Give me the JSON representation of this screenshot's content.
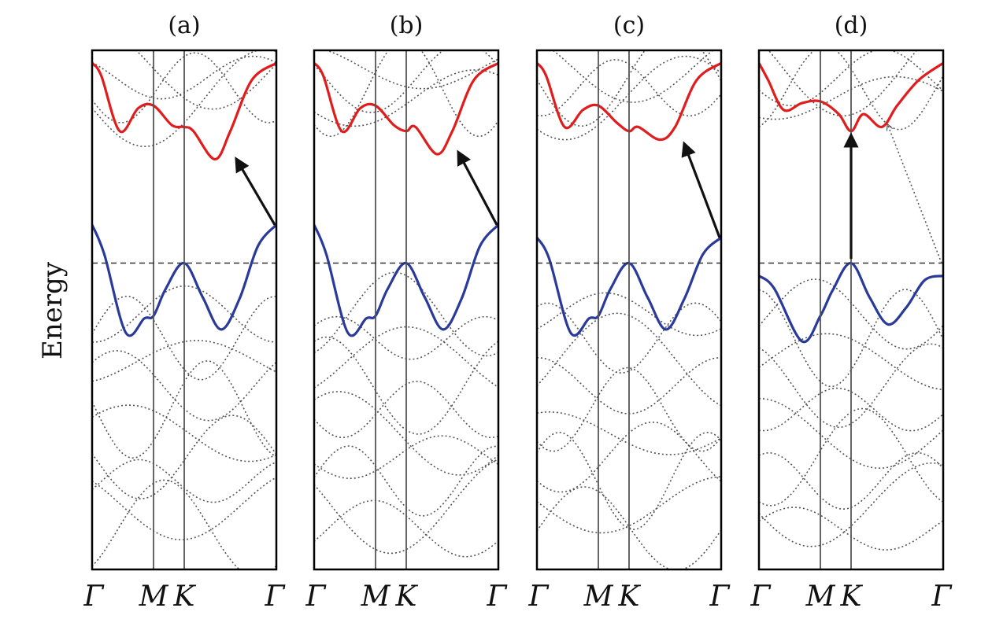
{
  "chart_data": {
    "type": "line",
    "ylabel": "Energy",
    "k_path": [
      "Γ",
      "M",
      "K",
      "Γ"
    ],
    "k_positions": [
      0,
      1,
      1.5,
      3
    ],
    "fermi_level": 0,
    "ylim": [
      -3.6,
      2.5
    ],
    "grid": false,
    "band_colors": {
      "conduction": "#e01c1c",
      "valence": "#2a3a9a",
      "other": "#555555",
      "arrow": "#111111"
    },
    "panels": [
      {
        "label": "(a)",
        "conduction": {
          "x": [
            0,
            0.15,
            0.45,
            0.75,
            1.0,
            1.3,
            1.5,
            1.65,
            2.0,
            2.25,
            2.6,
            3.0
          ],
          "y": [
            2.35,
            2.2,
            1.55,
            1.82,
            1.85,
            1.62,
            1.6,
            1.55,
            1.22,
            1.55,
            2.15,
            2.35
          ]
        },
        "valence": {
          "x": [
            0,
            0.2,
            0.55,
            0.85,
            1.0,
            1.2,
            1.5,
            1.8,
            2.1,
            2.4,
            2.7,
            3.0
          ],
          "y": [
            0.45,
            0.1,
            -0.82,
            -0.65,
            -0.62,
            -0.3,
            0.0,
            -0.4,
            -0.78,
            -0.42,
            0.2,
            0.45
          ]
        },
        "transition": {
          "from": [
            3.0,
            0.45
          ],
          "to": [
            2.35,
            1.22
          ],
          "style": "solid"
        }
      },
      {
        "label": "(b)",
        "conduction": {
          "x": [
            0,
            0.15,
            0.45,
            0.75,
            1.0,
            1.3,
            1.5,
            1.65,
            2.0,
            2.25,
            2.6,
            3.0
          ],
          "y": [
            2.35,
            2.2,
            1.55,
            1.82,
            1.85,
            1.62,
            1.55,
            1.6,
            1.28,
            1.55,
            2.15,
            2.35
          ]
        },
        "valence": {
          "x": [
            0,
            0.2,
            0.55,
            0.85,
            1.0,
            1.2,
            1.5,
            1.8,
            2.1,
            2.4,
            2.7,
            3.0
          ],
          "y": [
            0.45,
            0.1,
            -0.82,
            -0.65,
            -0.62,
            -0.3,
            0.0,
            -0.4,
            -0.78,
            -0.42,
            0.2,
            0.45
          ]
        },
        "transition": {
          "from": [
            3.0,
            0.45
          ],
          "to": [
            2.35,
            1.3
          ],
          "style": "solid"
        }
      },
      {
        "label": "(c)",
        "conduction": {
          "x": [
            0,
            0.15,
            0.45,
            0.75,
            1.0,
            1.3,
            1.5,
            1.65,
            2.0,
            2.25,
            2.6,
            3.0
          ],
          "y": [
            2.35,
            2.2,
            1.6,
            1.8,
            1.85,
            1.65,
            1.55,
            1.6,
            1.45,
            1.6,
            2.15,
            2.35
          ]
        },
        "valence": {
          "x": [
            0,
            0.2,
            0.55,
            0.85,
            1.0,
            1.2,
            1.5,
            1.8,
            2.1,
            2.4,
            2.7,
            3.0
          ],
          "y": [
            0.3,
            0.05,
            -0.82,
            -0.65,
            -0.62,
            -0.3,
            0.0,
            -0.4,
            -0.78,
            -0.42,
            0.1,
            0.3
          ]
        },
        "transition": {
          "from": [
            3.0,
            0.3
          ],
          "to": [
            2.4,
            1.4
          ],
          "style": "solid"
        }
      },
      {
        "label": "(d)",
        "conduction": {
          "x": [
            0,
            0.15,
            0.4,
            0.7,
            1.0,
            1.3,
            1.5,
            1.7,
            2.0,
            2.25,
            2.6,
            3.0
          ],
          "y": [
            2.35,
            2.15,
            1.8,
            1.88,
            1.9,
            1.75,
            1.55,
            1.75,
            1.6,
            1.85,
            2.15,
            2.35
          ]
        },
        "valence": {
          "x": [
            0,
            0.25,
            0.7,
            1.0,
            1.2,
            1.5,
            1.8,
            2.1,
            2.4,
            2.7,
            3.0
          ],
          "y": [
            -0.15,
            -0.3,
            -0.92,
            -0.62,
            -0.32,
            0.0,
            -0.4,
            -0.72,
            -0.52,
            -0.2,
            -0.15
          ]
        },
        "transition": {
          "from": [
            1.5,
            0.05
          ],
          "to": [
            1.5,
            1.5
          ],
          "style": "solid"
        },
        "transition2": {
          "from": [
            3.0,
            0.0
          ],
          "to": [
            2.1,
            1.62
          ],
          "style": "dotted"
        }
      }
    ]
  }
}
